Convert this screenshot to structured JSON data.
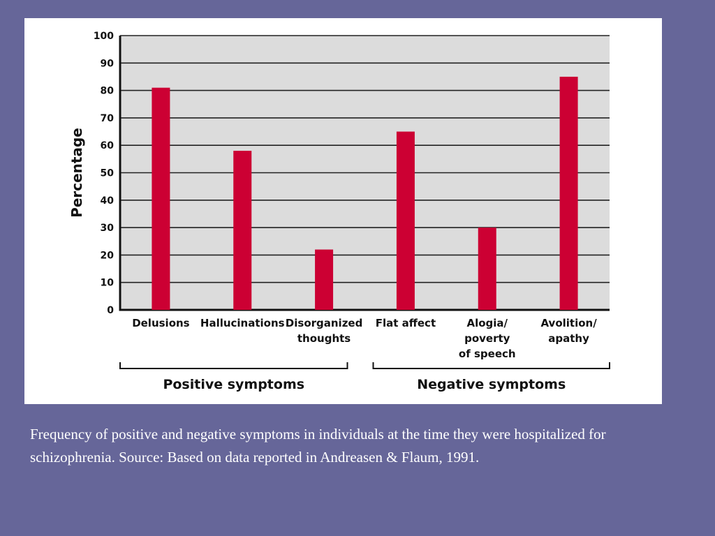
{
  "colors": {
    "background": "#666699",
    "panel": "#ffffff",
    "plot_area": "#dcdcdc",
    "bar": "#cc0033",
    "grid": "#222222"
  },
  "caption": "Frequency of positive and negative symptoms in individuals at the time they were hospitalized for schizophrenia. Source: Based on data  reported in Andreasen & Flaum, 1991.",
  "chart_data": {
    "type": "bar",
    "title": "",
    "xlabel": "",
    "ylabel": "Percentage",
    "ylim": [
      0,
      100
    ],
    "yticks": [
      0,
      10,
      20,
      30,
      40,
      50,
      60,
      70,
      80,
      90,
      100
    ],
    "grid": true,
    "categories": [
      [
        "Delusions"
      ],
      [
        "Hallucinations"
      ],
      [
        "Disorganized",
        "thoughts"
      ],
      [
        "Flat affect"
      ],
      [
        "Alogia/",
        "poverty",
        "of speech"
      ],
      [
        "Avolition/",
        "apathy"
      ]
    ],
    "values": [
      81,
      58,
      22,
      65,
      30,
      85
    ],
    "groups": [
      {
        "label": "Positive symptoms",
        "categories": [
          0,
          1,
          2
        ]
      },
      {
        "label": "Negative symptoms",
        "categories": [
          3,
          4,
          5
        ]
      }
    ]
  }
}
